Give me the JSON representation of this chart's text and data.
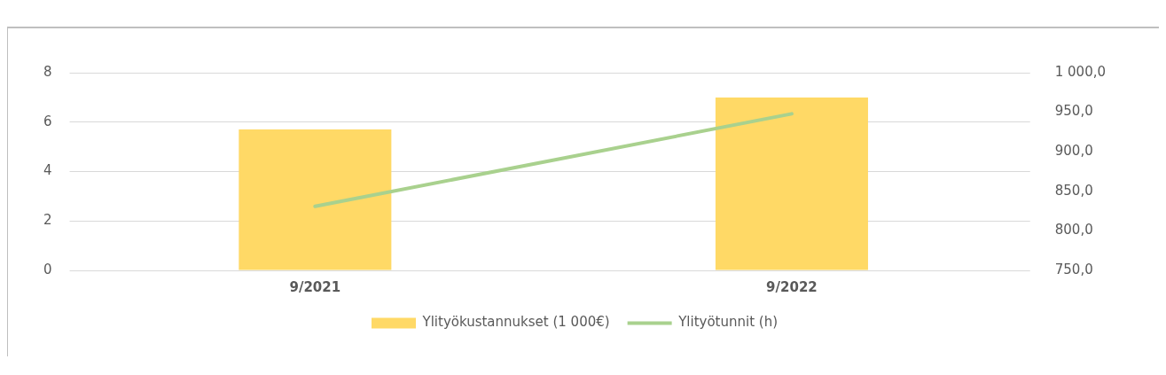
{
  "chart_data": {
    "type": "bar",
    "categories": [
      "9/2021",
      "9/2022"
    ],
    "series": [
      {
        "name": "Ylityökustannukset (1 000€)",
        "color": "#ffd966",
        "values": [
          5.7,
          7.0
        ]
      },
      {
        "name": "Ylityötunnit (h)",
        "type": "line",
        "axis": "y2",
        "color": "#a9d18e",
        "values": [
          831,
          948
        ]
      }
    ],
    "ylim": [
      0,
      8
    ],
    "yticks": [
      0,
      2,
      4,
      6,
      8
    ],
    "y2lim": [
      750,
      1000
    ],
    "y2ticks": [
      {
        "value": 750,
        "label": "750,0"
      },
      {
        "value": 800,
        "label": "800,0"
      },
      {
        "value": 850,
        "label": "850,0"
      },
      {
        "value": 900,
        "label": "900,0"
      },
      {
        "value": 950,
        "label": "950,0"
      },
      {
        "value": 1000,
        "label": "1 000,0"
      }
    ],
    "grid": "y",
    "legend": "bottom",
    "marker": "none"
  }
}
